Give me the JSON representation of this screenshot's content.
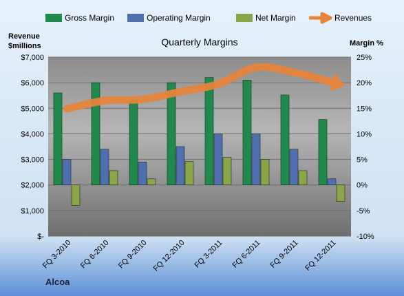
{
  "chart_data": {
    "type": "bar",
    "title": "Quarterly Margins",
    "footer": "Alcoa",
    "categories": [
      "FQ 3-2010",
      "FQ 6-2010",
      "FQ 9-2010",
      "FQ 12-2010",
      "FQ 3-2011",
      "FQ 6-2011",
      "FQ 9-2011",
      "FQ 12-2011"
    ],
    "left_axis": {
      "label_line1": "Revenue",
      "label_line2": "$millions",
      "min": 0,
      "max": 7000,
      "ticks": [
        0,
        1000,
        2000,
        3000,
        4000,
        5000,
        6000,
        7000
      ],
      "tick_labels": [
        "$-",
        "$1,000",
        "$2,000",
        "$3,000",
        "$4,000",
        "$5,000",
        "$6,000",
        "$7,000"
      ]
    },
    "right_axis": {
      "label": "Margin %",
      "min": -10,
      "max": 25,
      "ticks": [
        -10,
        -5,
        0,
        5,
        10,
        15,
        20,
        25
      ],
      "tick_labels": [
        "-10%",
        "-5%",
        "0%",
        "5%",
        "10%",
        "15%",
        "20%",
        "25%"
      ]
    },
    "series": [
      {
        "name": "Gross Margin",
        "type": "bar",
        "axis": "right",
        "color": "#1f8a4c",
        "values": [
          18.0,
          20.0,
          16.5,
          20.0,
          21.0,
          20.5,
          17.6,
          12.8
        ]
      },
      {
        "name": "Operating Margin",
        "type": "bar",
        "axis": "right",
        "color": "#4f6fb0",
        "values": [
          5.0,
          7.0,
          4.5,
          7.5,
          10.0,
          10.0,
          7.0,
          1.2
        ]
      },
      {
        "name": "Net Margin",
        "type": "bar",
        "axis": "right",
        "color": "#8aa648",
        "values": [
          -4.0,
          2.8,
          1.2,
          4.6,
          5.4,
          5.0,
          2.8,
          -3.2
        ]
      },
      {
        "name": "Revenues",
        "type": "line",
        "axis": "left",
        "color": "#e8833a",
        "values": [
          4980,
          5300,
          5350,
          5650,
          5950,
          6600,
          6400,
          6020
        ]
      }
    ],
    "legend_position": "top",
    "grid": true
  }
}
